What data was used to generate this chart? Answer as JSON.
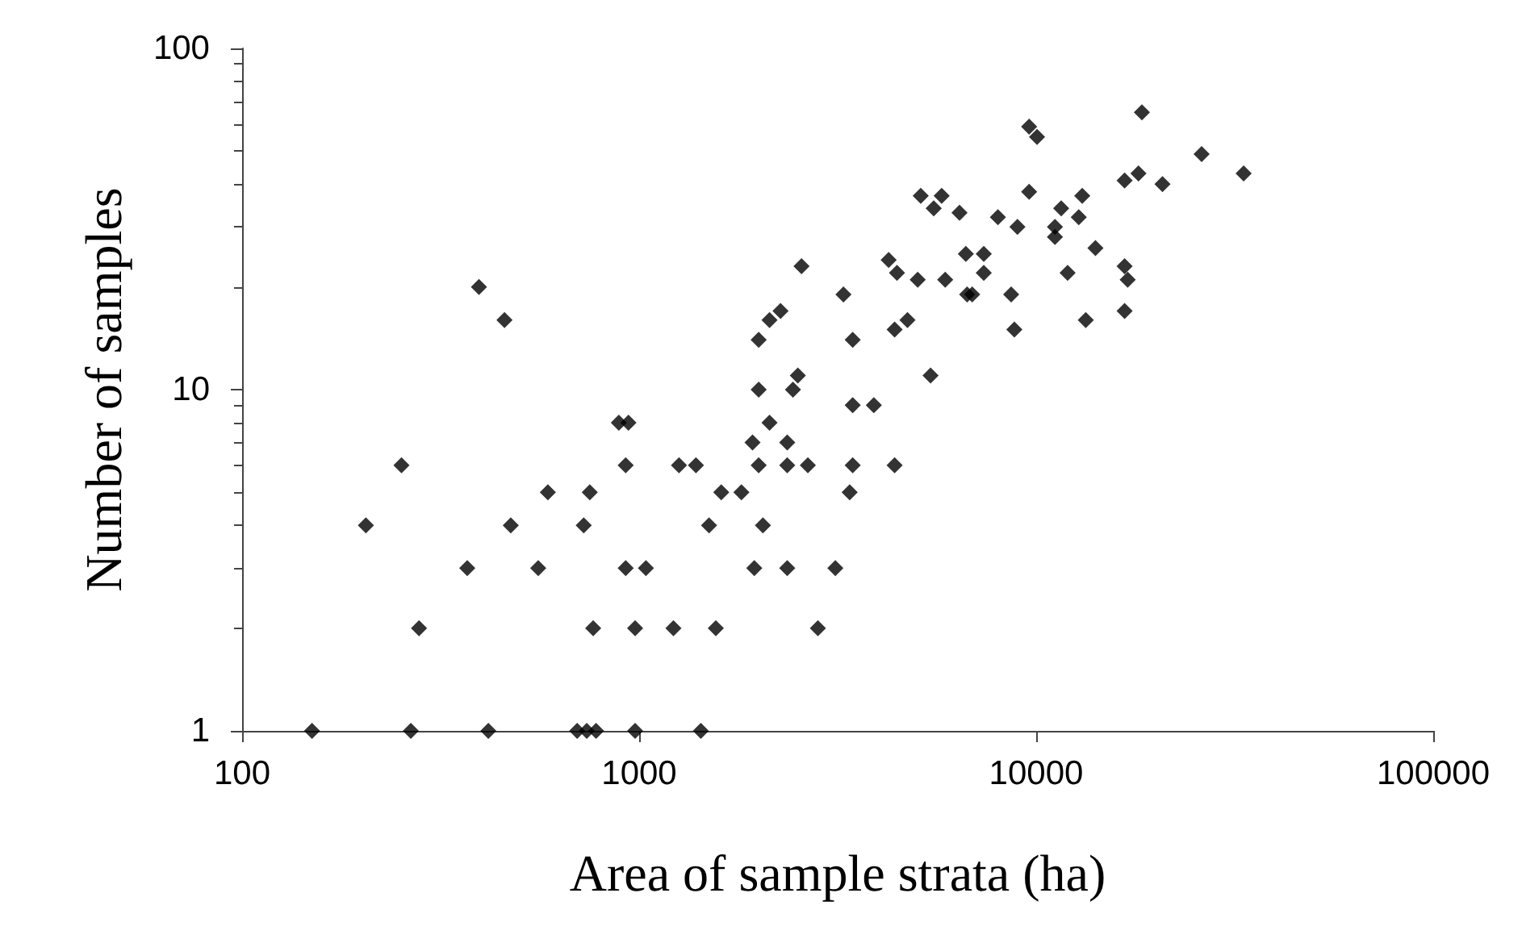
{
  "chart_data": {
    "type": "scatter",
    "xlabel": "Area of sample strata (ha)",
    "ylabel": "Number of samples",
    "log": "xy",
    "grid": false,
    "marker": "diamond",
    "xlim": [
      100,
      100000
    ],
    "ylim": [
      1,
      100
    ],
    "xticks": [
      100,
      1000,
      10000,
      100000
    ],
    "yticks": [
      1,
      10,
      100
    ],
    "series": [
      {
        "color": "#000000",
        "x": [
          150,
          266,
          417,
          698,
          738,
          779,
          977,
          1430,
          395,
          458,
          940,
          889,
          252,
          925,
          589,
          751,
          205,
          475,
          725,
          369,
          557,
          925,
          1040,
          279,
          766,
          977,
          2564,
          4250,
          4460,
          3270,
          2270,
          2130,
          2000,
          3450,
          4400,
          2510,
          2000,
          2440,
          3450,
          3900,
          2130,
          1930,
          2360,
          1260,
          1390,
          2000,
          2360,
          2660,
          3450,
          4400,
          1610,
          1810,
          3390,
          1500,
          2050,
          1950,
          2360,
          3120,
          1220,
          1560,
          2820,
          18460,
          9600,
          10050,
          26100,
          33300,
          16700,
          18100,
          20800,
          5120,
          5780,
          5520,
          6410,
          9600,
          8010,
          8970,
          11560,
          13060,
          12800,
          11150,
          11150,
          14100,
          6650,
          7380,
          7380,
          12000,
          17000,
          16700,
          5030,
          5900,
          6900,
          6700,
          8650,
          16700,
          4740,
          13330,
          8810,
          5420
        ],
        "values": [
          1,
          1,
          1,
          1,
          1,
          1,
          1,
          1,
          20,
          16,
          8,
          8,
          6,
          6,
          5,
          5,
          4,
          4,
          4,
          3,
          3,
          3,
          3,
          2,
          2,
          2,
          23,
          24,
          22,
          19,
          17,
          16,
          14,
          14,
          15,
          11,
          10,
          10,
          9,
          9,
          8,
          7,
          7,
          6,
          6,
          6,
          6,
          6,
          6,
          6,
          5,
          5,
          5,
          4,
          4,
          3,
          3,
          3,
          2,
          2,
          2,
          65,
          59,
          55,
          49,
          43,
          41,
          43,
          40,
          37,
          37,
          34,
          33,
          38,
          32,
          30,
          34,
          37,
          32,
          30,
          28,
          26,
          25,
          25,
          22,
          22,
          21,
          23,
          21,
          21,
          19,
          19,
          19,
          17,
          16,
          16,
          15,
          11
        ]
      }
    ]
  }
}
